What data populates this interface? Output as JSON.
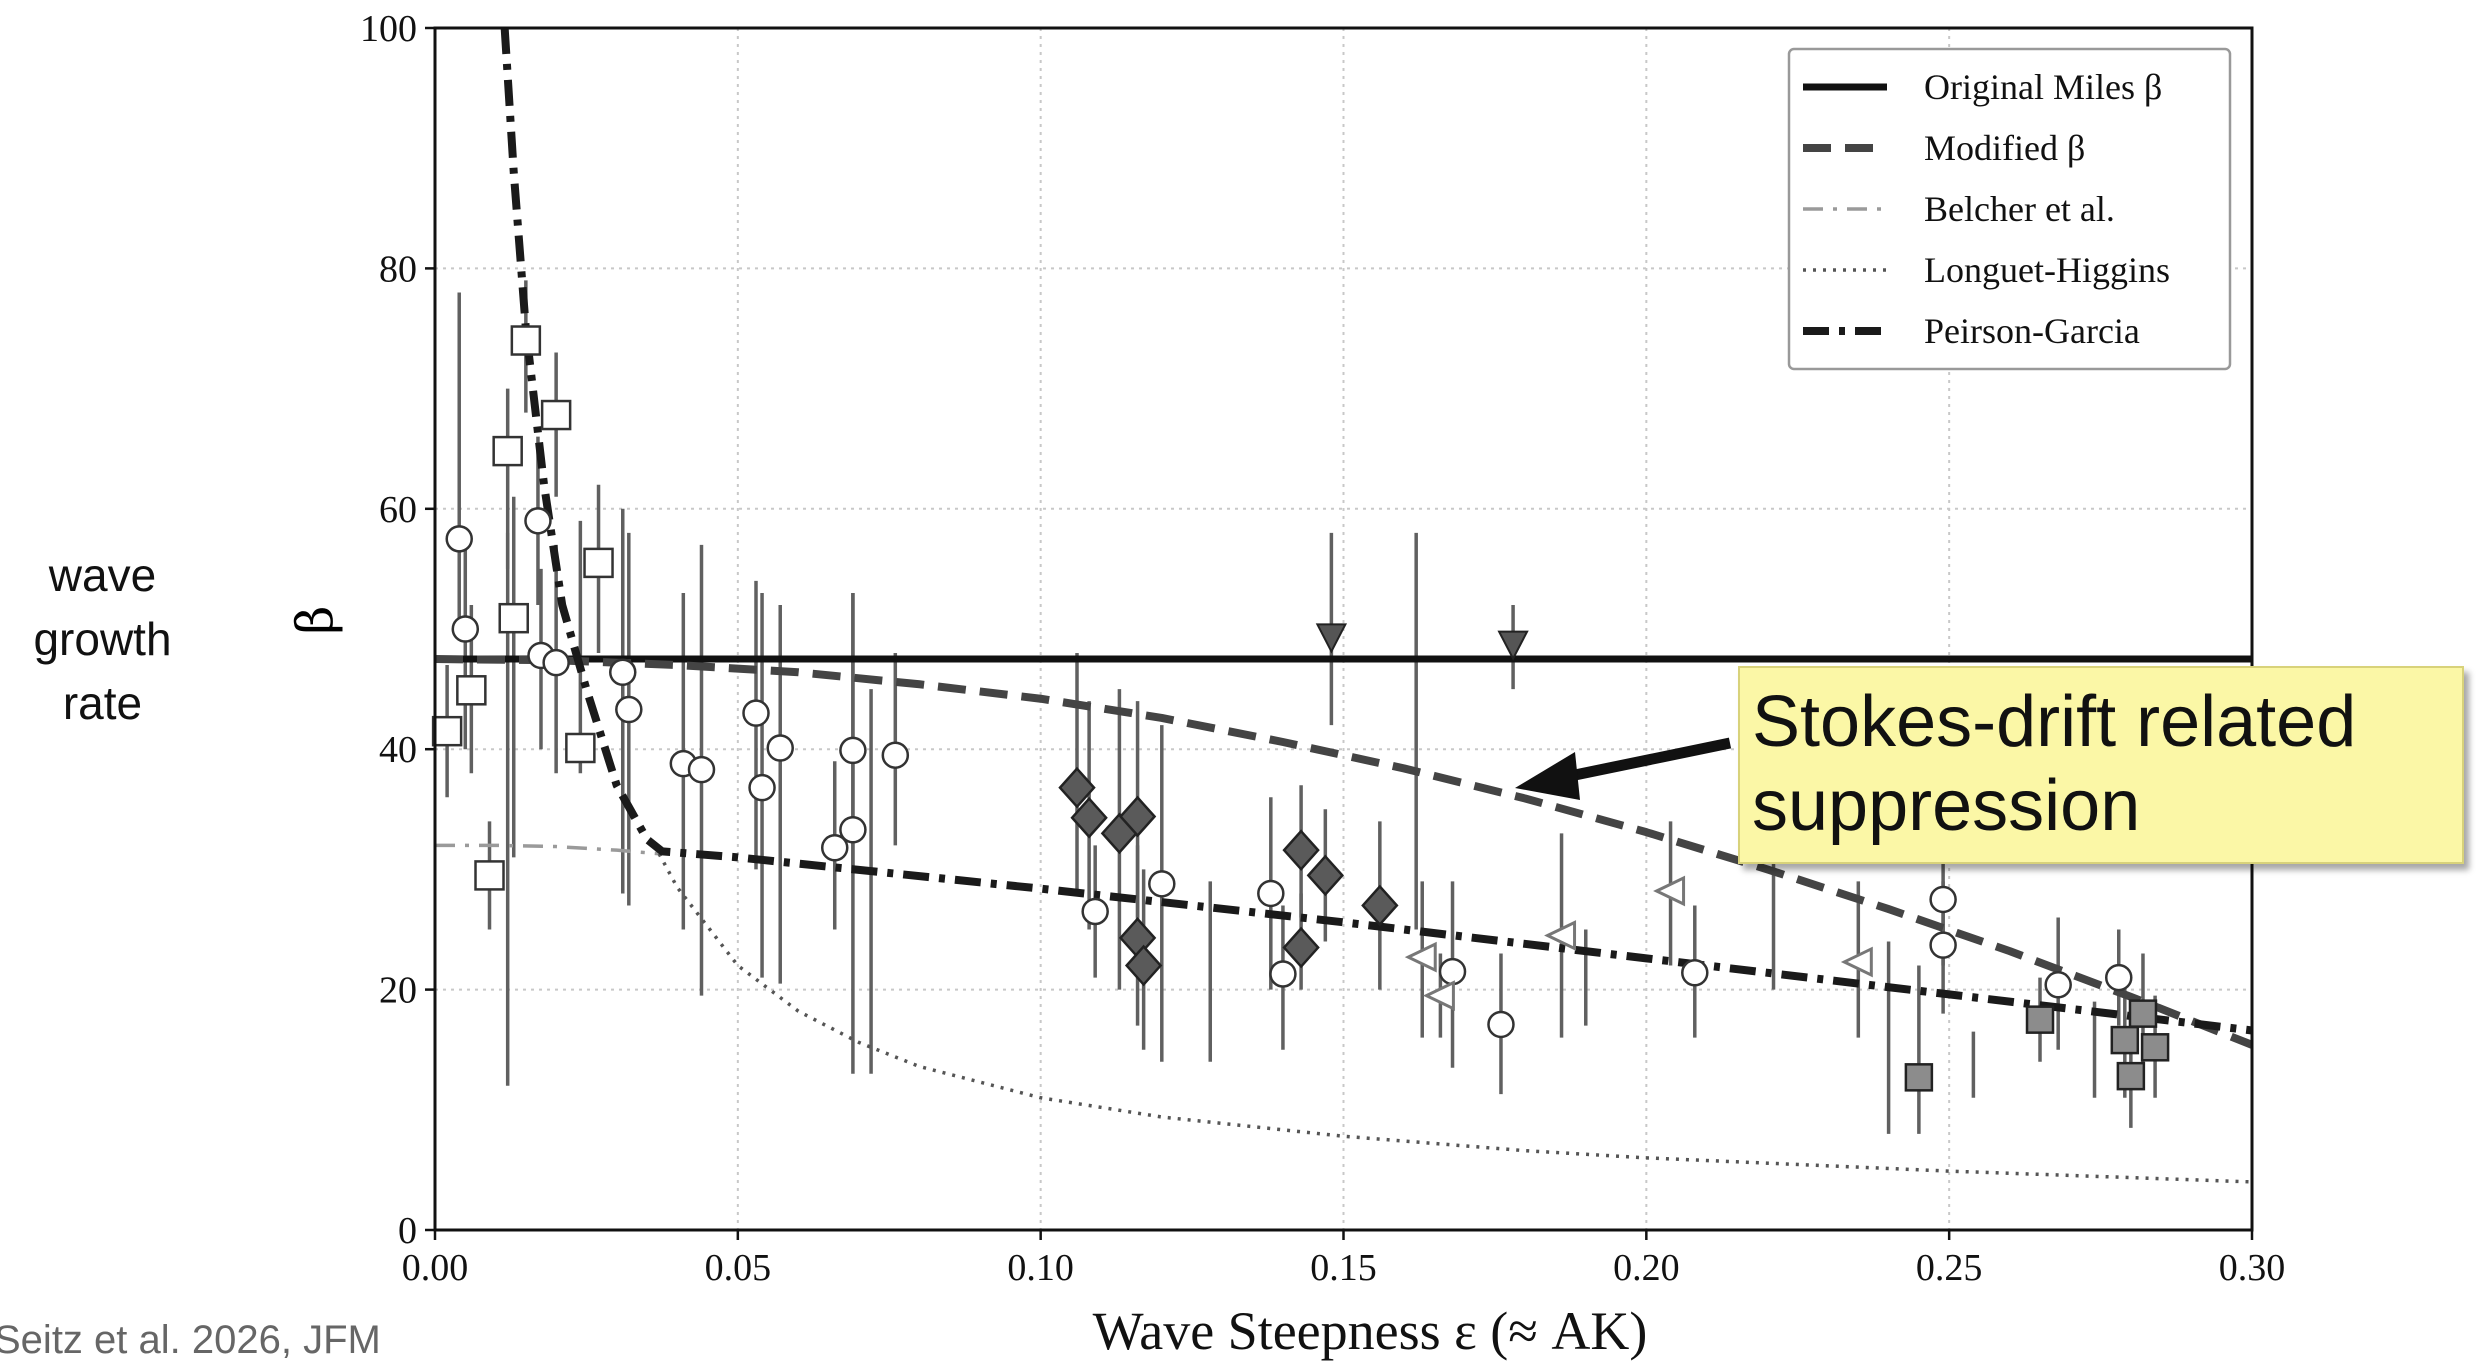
{
  "side_label": "wave\ngrowth\nrate",
  "citation": "Seitz et al. 2026, JFM",
  "callout": "Stokes-drift related suppression",
  "chart_data": {
    "type": "scatter",
    "xlabel": "Wave Steepness ε (≈ AK)",
    "ylabel": "β",
    "xlim": [
      0.0,
      0.3
    ],
    "ylim": [
      0,
      100
    ],
    "x_ticks": [
      "0.00",
      "0.05",
      "0.10",
      "0.15",
      "0.20",
      "0.25",
      "0.30"
    ],
    "y_ticks": [
      "0",
      "20",
      "40",
      "60",
      "80",
      "100"
    ],
    "grid": true,
    "legend_position": "top-right",
    "lines": [
      {
        "name": "Original Miles β",
        "style": "solid",
        "color": "#111111",
        "x": [
          0.0,
          0.3
        ],
        "y": [
          47.5,
          47.5
        ]
      },
      {
        "name": "Modified β",
        "style": "dashed",
        "color": "#444444",
        "x": [
          0.0,
          0.02,
          0.04,
          0.06,
          0.08,
          0.1,
          0.12,
          0.14,
          0.16,
          0.18,
          0.2,
          0.22,
          0.24,
          0.26,
          0.28,
          0.3
        ],
        "y": [
          47.5,
          47.4,
          47.0,
          46.4,
          45.4,
          44.2,
          42.6,
          40.6,
          38.4,
          35.9,
          33.1,
          30.0,
          26.7,
          23.2,
          19.4,
          15.4
        ]
      },
      {
        "name": "Belcher et al.",
        "style": "dashdot-light",
        "color": "#9a9a9a",
        "x": [
          0.0,
          0.01,
          0.02,
          0.03,
          0.037
        ],
        "y": [
          32.0,
          32.0,
          31.9,
          31.6,
          31.3
        ]
      },
      {
        "name": "Longuet-Higgins",
        "style": "dotted",
        "color": "#555555",
        "x": [
          0.037,
          0.04,
          0.05,
          0.06,
          0.07,
          0.08,
          0.1,
          0.12,
          0.15,
          0.18,
          0.2,
          0.25,
          0.3
        ],
        "y": [
          31.3,
          28.5,
          22.0,
          18.2,
          15.6,
          13.6,
          11.0,
          9.4,
          7.8,
          6.6,
          6.0,
          4.9,
          4.0
        ]
      },
      {
        "name": "Peirson-Garcia",
        "style": "dashdot-heavy",
        "color": "#1a1a1a",
        "x": [
          0.0115,
          0.013,
          0.015,
          0.018,
          0.021,
          0.025,
          0.03,
          0.035,
          0.0375,
          0.05,
          0.1,
          0.15,
          0.2,
          0.25,
          0.3
        ],
        "y": [
          100,
          88,
          75,
          62,
          52,
          45,
          37,
          32.5,
          31.5,
          31.0,
          28.4,
          25.6,
          22.6,
          19.6,
          16.6
        ]
      }
    ],
    "series": [
      {
        "marker": "open-circle",
        "points": [
          [
            0.004,
            57.5,
            50,
            78
          ],
          [
            0.005,
            50,
            40,
            58
          ],
          [
            0.017,
            59,
            52,
            66
          ],
          [
            0.0175,
            47.8,
            40,
            55
          ],
          [
            0.02,
            47.2,
            38,
            57
          ],
          [
            0.031,
            46.4,
            28,
            60
          ],
          [
            0.032,
            43.3,
            27,
            58
          ],
          [
            0.041,
            38.8,
            25,
            53
          ],
          [
            0.044,
            38.3,
            19.5,
            57
          ],
          [
            0.053,
            43.0,
            30,
            54
          ],
          [
            0.054,
            36.8,
            21,
            53
          ],
          [
            0.057,
            40.1,
            20.5,
            52
          ],
          [
            0.066,
            31.8,
            25,
            39
          ],
          [
            0.069,
            39.9,
            30,
            53
          ],
          [
            0.069,
            33.3,
            13,
            53
          ],
          [
            0.076,
            39.5,
            32,
            48
          ],
          [
            0.109,
            26.5,
            21,
            32
          ],
          [
            0.12,
            28.8,
            14,
            42
          ],
          [
            0.138,
            28.0,
            20,
            36
          ],
          [
            0.14,
            21.3,
            15,
            27
          ],
          [
            0.168,
            21.5,
            13.5,
            29
          ],
          [
            0.176,
            17.1,
            11.3,
            23
          ],
          [
            0.208,
            21.4,
            16,
            27
          ],
          [
            0.249,
            27.5,
            22,
            33
          ],
          [
            0.249,
            23.7,
            18,
            29
          ],
          [
            0.268,
            20.4,
            15,
            26
          ],
          [
            0.278,
            21.0,
            17,
            25
          ]
        ]
      },
      {
        "marker": "open-square",
        "points": [
          [
            0.002,
            41.5,
            36,
            47
          ],
          [
            0.006,
            44.9,
            38,
            52
          ],
          [
            0.009,
            29.5,
            25,
            34
          ],
          [
            0.012,
            64.8,
            55,
            70
          ],
          [
            0.013,
            50.9,
            31,
            61
          ],
          [
            0.015,
            74.0,
            68,
            79
          ],
          [
            0.02,
            67.8,
            61,
            73
          ],
          [
            0.024,
            40.1,
            38,
            59
          ],
          [
            0.027,
            55.5,
            48,
            62
          ]
        ]
      },
      {
        "marker": "filled-diamond",
        "points": [
          [
            0.106,
            36.8,
            28,
            48
          ],
          [
            0.108,
            34.3,
            25,
            44
          ],
          [
            0.113,
            33.0,
            20,
            45
          ],
          [
            0.116,
            34.4,
            26,
            44
          ],
          [
            0.116,
            24.3,
            17,
            32
          ],
          [
            0.117,
            22.0,
            15,
            30
          ],
          [
            0.143,
            31.6,
            26,
            37
          ],
          [
            0.143,
            23.5,
            20,
            28
          ],
          [
            0.147,
            29.5,
            24,
            35
          ],
          [
            0.156,
            27.0,
            20,
            34
          ]
        ]
      },
      {
        "marker": "filled-down-triangle",
        "points": [
          [
            0.148,
            49.3,
            42,
            58
          ],
          [
            0.178,
            48.7,
            45,
            52
          ]
        ]
      },
      {
        "marker": "open-left-triangle",
        "points": [
          [
            0.163,
            22.7,
            16,
            29
          ],
          [
            0.166,
            19.5,
            16,
            23
          ],
          [
            0.186,
            24.5,
            16,
            33
          ],
          [
            0.204,
            28.2,
            22,
            34
          ],
          [
            0.235,
            22.3,
            16,
            29
          ]
        ]
      },
      {
        "marker": "filled-square-gray",
        "points": [
          [
            0.245,
            12.7,
            8,
            22
          ],
          [
            0.265,
            17.5,
            14,
            21
          ],
          [
            0.279,
            15.8,
            11,
            21
          ],
          [
            0.28,
            12.8,
            8.5,
            17
          ],
          [
            0.282,
            18.0,
            13,
            23
          ],
          [
            0.284,
            15.2,
            11,
            19.5
          ]
        ]
      },
      {
        "marker": "errorbar-only",
        "points": [
          [
            0.012,
            45.0,
            12,
            58
          ],
          [
            0.072,
            28.0,
            13,
            45
          ],
          [
            0.128,
            20.0,
            14,
            29
          ],
          [
            0.162,
            41.0,
            25,
            58
          ],
          [
            0.19,
            21.0,
            17,
            25
          ],
          [
            0.221,
            28.0,
            20,
            36
          ],
          [
            0.24,
            16.0,
            8,
            24
          ],
          [
            0.254,
            13.5,
            11,
            16.5
          ],
          [
            0.274,
            15.0,
            11,
            19
          ]
        ]
      }
    ]
  }
}
